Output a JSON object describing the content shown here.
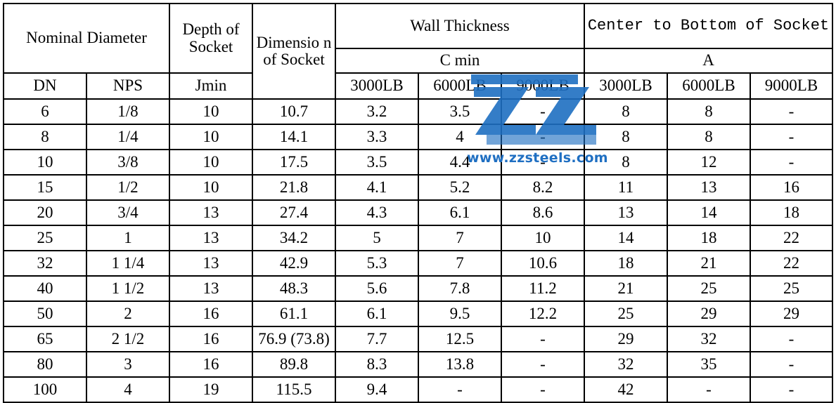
{
  "header": {
    "nominal_diameter": "Nominal Diameter",
    "depth_of_socket": "Depth of Socket",
    "dimension_of_socket": "Dimensio n of Socket",
    "wall_thickness": "Wall Thickness",
    "c_min": "C min",
    "center_to_bottom": "Center to Bottom of Socket",
    "a_label": "A",
    "dn": "DN",
    "nps": "NPS",
    "jmin": "Jmin",
    "wt_3000": "3000LB",
    "wt_6000": "6000LB",
    "wt_9000": "9000LB",
    "a_3000": "3000LB",
    "a_6000": "6000LB",
    "a_9000": "9000LB"
  },
  "rows": [
    {
      "dn": "6",
      "nps": "1/8",
      "jmin": "10",
      "dim": "10.7",
      "c3000": "3.2",
      "c6000": "3.5",
      "c9000": "-",
      "a3000": "8",
      "a6000": "8",
      "a9000": "-"
    },
    {
      "dn": "8",
      "nps": "1/4",
      "jmin": "10",
      "dim": "14.1",
      "c3000": "3.3",
      "c6000": "4",
      "c9000": "-",
      "a3000": "8",
      "a6000": "8",
      "a9000": "-"
    },
    {
      "dn": "10",
      "nps": "3/8",
      "jmin": "10",
      "dim": "17.5",
      "c3000": "3.5",
      "c6000": "4.4",
      "c9000": "-",
      "a3000": "8",
      "a6000": "12",
      "a9000": "-"
    },
    {
      "dn": "15",
      "nps": "1/2",
      "jmin": "10",
      "dim": "21.8",
      "c3000": "4.1",
      "c6000": "5.2",
      "c9000": "8.2",
      "a3000": "11",
      "a6000": "13",
      "a9000": "16"
    },
    {
      "dn": "20",
      "nps": "3/4",
      "jmin": "13",
      "dim": "27.4",
      "c3000": "4.3",
      "c6000": "6.1",
      "c9000": "8.6",
      "a3000": "13",
      "a6000": "14",
      "a9000": "18"
    },
    {
      "dn": "25",
      "nps": "1",
      "jmin": "13",
      "dim": "34.2",
      "c3000": "5",
      "c6000": "7",
      "c9000": "10",
      "a3000": "14",
      "a6000": "18",
      "a9000": "22"
    },
    {
      "dn": "32",
      "nps": "1 1/4",
      "jmin": "13",
      "dim": "42.9",
      "c3000": "5.3",
      "c6000": "7",
      "c9000": "10.6",
      "a3000": "18",
      "a6000": "21",
      "a9000": "22"
    },
    {
      "dn": "40",
      "nps": "1 1/2",
      "jmin": "13",
      "dim": "48.3",
      "c3000": "5.6",
      "c6000": "7.8",
      "c9000": "11.2",
      "a3000": "21",
      "a6000": "25",
      "a9000": "25"
    },
    {
      "dn": "50",
      "nps": "2",
      "jmin": "16",
      "dim": "61.1",
      "c3000": "6.1",
      "c6000": "9.5",
      "c9000": "12.2",
      "a3000": "25",
      "a6000": "29",
      "a9000": "29"
    },
    {
      "dn": "65",
      "nps": "2 1/2",
      "jmin": "16",
      "dim": "76.9 (73.8)",
      "c3000": "7.7",
      "c6000": "12.5",
      "c9000": "-",
      "a3000": "29",
      "a6000": "32",
      "a9000": "-"
    },
    {
      "dn": "80",
      "nps": "3",
      "jmin": "16",
      "dim": "89.8",
      "c3000": "8.3",
      "c6000": "13.8",
      "c9000": "-",
      "a3000": "32",
      "a6000": "35",
      "a9000": "-"
    },
    {
      "dn": "100",
      "nps": "4",
      "jmin": "19",
      "dim": "115.5",
      "c3000": "9.4",
      "c6000": "-",
      "c9000": "-",
      "a3000": "42",
      "a6000": "-",
      "a9000": "-"
    }
  ],
  "watermark": {
    "text": "www.zzsteels.com",
    "icon": "zz-logo-icon",
    "color": "#1f6fc2"
  }
}
